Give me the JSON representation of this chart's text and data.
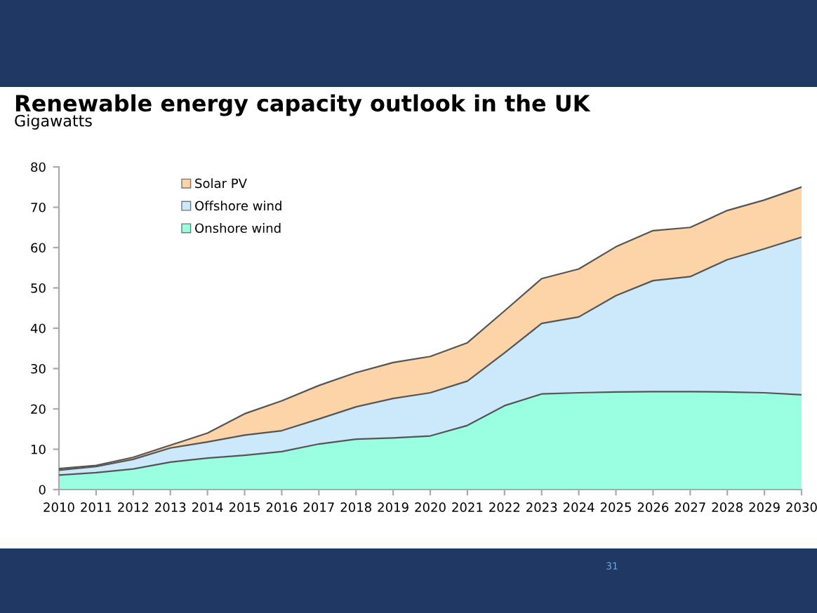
{
  "chart_data": {
    "type": "area",
    "stacked": true,
    "title": "Renewable energy capacity outlook in the UK",
    "subtitle": "Gigawatts",
    "x": [
      2010,
      2011,
      2012,
      2013,
      2014,
      2015,
      2016,
      2017,
      2018,
      2019,
      2020,
      2021,
      2022,
      2023,
      2024,
      2025,
      2026,
      2027,
      2028,
      2029,
      2030
    ],
    "series": [
      {
        "name": "Onshore wind",
        "color": "#99ffe0",
        "values": [
          3.6,
          4.2,
          5.1,
          6.8,
          7.8,
          8.5,
          9.4,
          11.3,
          12.5,
          12.8,
          13.3,
          15.9,
          20.8,
          23.7,
          24.0,
          24.2,
          24.3,
          24.3,
          24.2,
          24.0,
          23.5
        ]
      },
      {
        "name": "Offshore wind",
        "color": "#cce9fb",
        "values": [
          1.2,
          1.5,
          2.4,
          3.5,
          4.0,
          5.0,
          5.2,
          6.2,
          8.0,
          9.8,
          10.7,
          11.0,
          13.1,
          17.5,
          18.8,
          23.9,
          27.5,
          28.5,
          32.8,
          35.7,
          39.1
        ]
      },
      {
        "name": "Solar PV",
        "color": "#fdd4a8",
        "values": [
          0.4,
          0.3,
          0.5,
          0.7,
          2.2,
          5.3,
          7.4,
          8.3,
          8.5,
          8.9,
          9.0,
          9.5,
          10.4,
          11.1,
          11.9,
          12.1,
          12.4,
          12.2,
          12.2,
          12.1,
          12.4
        ]
      }
    ],
    "xlim": [
      2010,
      2030
    ],
    "xticks": [
      2010,
      2011,
      2012,
      2013,
      2014,
      2015,
      2016,
      2017,
      2018,
      2019,
      2020,
      2021,
      2022,
      2023,
      2024,
      2025,
      2026,
      2027,
      2028,
      2029,
      2030
    ],
    "ylim": [
      0,
      80
    ],
    "yticks": [
      0,
      10,
      20,
      30,
      40,
      50,
      60,
      70,
      80
    ],
    "grid": false,
    "legend": "top left",
    "annotations": [
      "31"
    ]
  }
}
